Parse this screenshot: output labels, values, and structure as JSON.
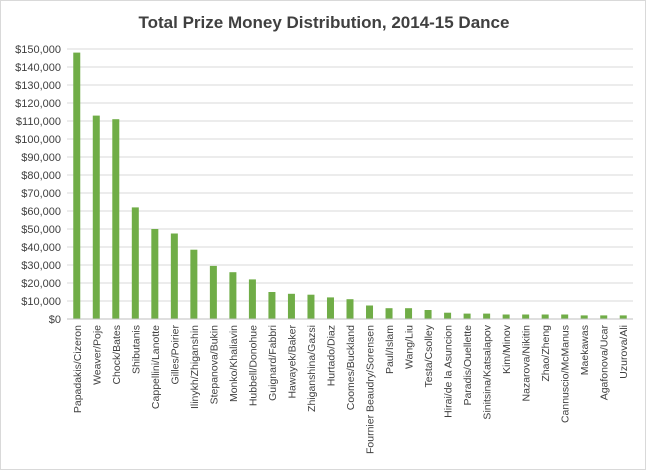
{
  "chart_data": {
    "type": "bar",
    "title": "Total Prize Money Distribution, 2014-15 Dance",
    "xlabel": "",
    "ylabel": "",
    "ylim": [
      0,
      150000
    ],
    "ytick_step": 10000,
    "ytick_labels": [
      "$0",
      "$10,000",
      "$20,000",
      "$30,000",
      "$40,000",
      "$50,000",
      "$60,000",
      "$70,000",
      "$80,000",
      "$90,000",
      "$100,000",
      "$110,000",
      "$120,000",
      "$130,000",
      "$140,000",
      "$150,000"
    ],
    "grid": true,
    "bar_color": "#70ad47",
    "categories": [
      "Papadakis/Cizeron",
      "Weaver/Poje",
      "Chock/Bates",
      "Shibutanis",
      "Cappellini/Lanotte",
      "Gilles/Poirier",
      "Ilinykh/Zhiganshin",
      "Stepanova/Bukin",
      "Monko/Khaliavin",
      "Hubbell/Donohue",
      "Guignard/Fabbri",
      "Hawayek/Baker",
      "Zhiganshina/Gazsi",
      "Hurtado/Diaz",
      "Coomes/Buckland",
      "Fournier Beaudry/Sorensen",
      "Paul/Islam",
      "Wang/Liu",
      "Testa/Csolley",
      "Hirai/de la Asuncion",
      "Paradis/Ouellette",
      "Sinitsina/Katsalapov",
      "Kim/Minov",
      "Nazarova/Nikitin",
      "Zhao/Zheng",
      "Cannuscio/McManus",
      "Maekawas",
      "Agafonova/Ucar",
      "Uzurova/Ali"
    ],
    "values": [
      148000,
      113000,
      111000,
      62000,
      50000,
      47500,
      38500,
      29500,
      26000,
      22000,
      15000,
      14000,
      13500,
      12000,
      11000,
      7500,
      6000,
      6000,
      5000,
      3500,
      3000,
      3000,
      2500,
      2500,
      2500,
      2500,
      2000,
      2000,
      2000
    ]
  }
}
